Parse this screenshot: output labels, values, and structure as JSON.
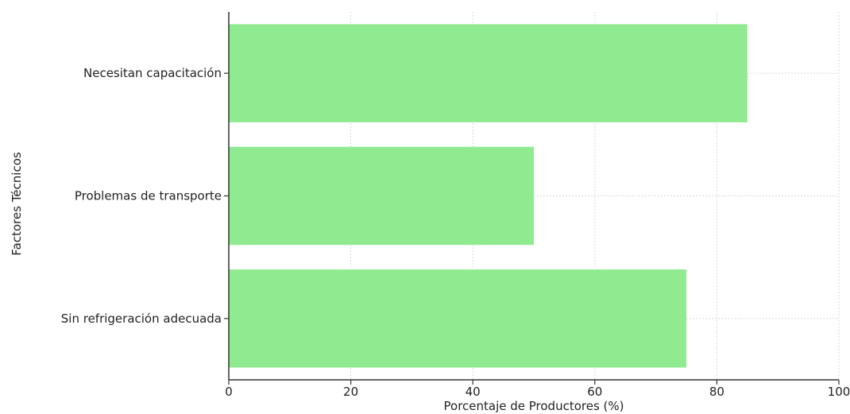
{
  "chart_data": {
    "type": "bar",
    "orientation": "horizontal",
    "title": "",
    "xlabel": "Porcentaje de Productores (%)",
    "ylabel": "Factores Técnicos",
    "categories": [
      "Necesitan capacitación",
      "Problemas de transporte",
      "Sin refrigeración adecuada"
    ],
    "values": [
      85,
      50,
      75
    ],
    "xlim": [
      0,
      100
    ],
    "xticks": [
      0,
      20,
      40,
      60,
      80,
      100
    ],
    "grid": true,
    "bar_color": "#90ea8f"
  }
}
